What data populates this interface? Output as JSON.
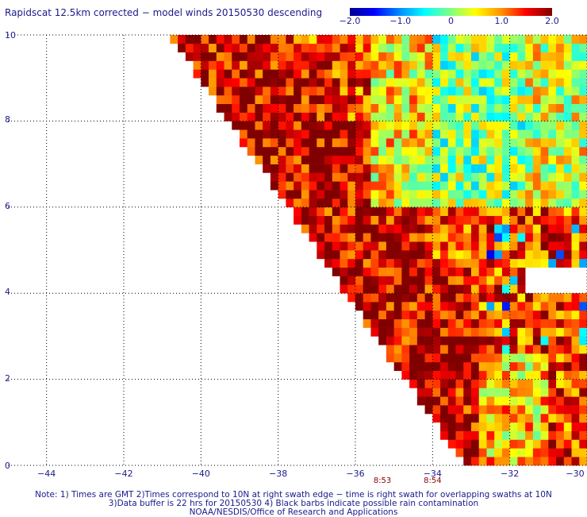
{
  "title": "Rapidscat 12.5km corrected − model winds 20150530 descending",
  "colorbar": {
    "ticks": [
      {
        "label": "−2.0",
        "value": -2.0
      },
      {
        "label": "−1.0",
        "value": -1.0
      },
      {
        "label": "0",
        "value": 0
      },
      {
        "label": "1.0",
        "value": 1.0
      },
      {
        "label": "2.0",
        "value": 2.0
      }
    ],
    "range": [
      -2.0,
      2.0
    ]
  },
  "chart_data": {
    "type": "heatmap",
    "title": "Rapidscat 12.5km corrected − model winds 20150530 descending",
    "xlim": [
      -45,
      -30
    ],
    "ylim": [
      0,
      10
    ],
    "x_ticks": [
      "−44",
      "−42",
      "−40",
      "−38",
      "−36",
      "−34",
      "−32",
      "−30"
    ],
    "y_ticks": [
      "0",
      "2",
      "4",
      "6",
      "8",
      "10"
    ],
    "x_tick_values": [
      -44,
      -42,
      -40,
      -38,
      -36,
      -34,
      -32,
      -30
    ],
    "y_tick_values": [
      0,
      2,
      4,
      6,
      8,
      10
    ],
    "grid": true,
    "colorbar_range": [
      -2.0,
      2.0
    ],
    "swath_edge_line": [
      [
        -40.8,
        10
      ],
      [
        -33.2,
        0
      ]
    ],
    "time_markers": [
      {
        "label": "8:53",
        "lon": -35.3
      },
      {
        "label": "8:54",
        "lon": -34.0
      }
    ]
  },
  "notes": [
    "Note: 1) Times are GMT 2)Times correspond to 10N at right swath edge − time is right swath for overlapping swaths at 10N",
    "3)Data buffer is 22 hrs for 20150530 4) Black barbs indicate possible rain contamination",
    "NOAA/NESDIS/Office of Research and Applications"
  ]
}
